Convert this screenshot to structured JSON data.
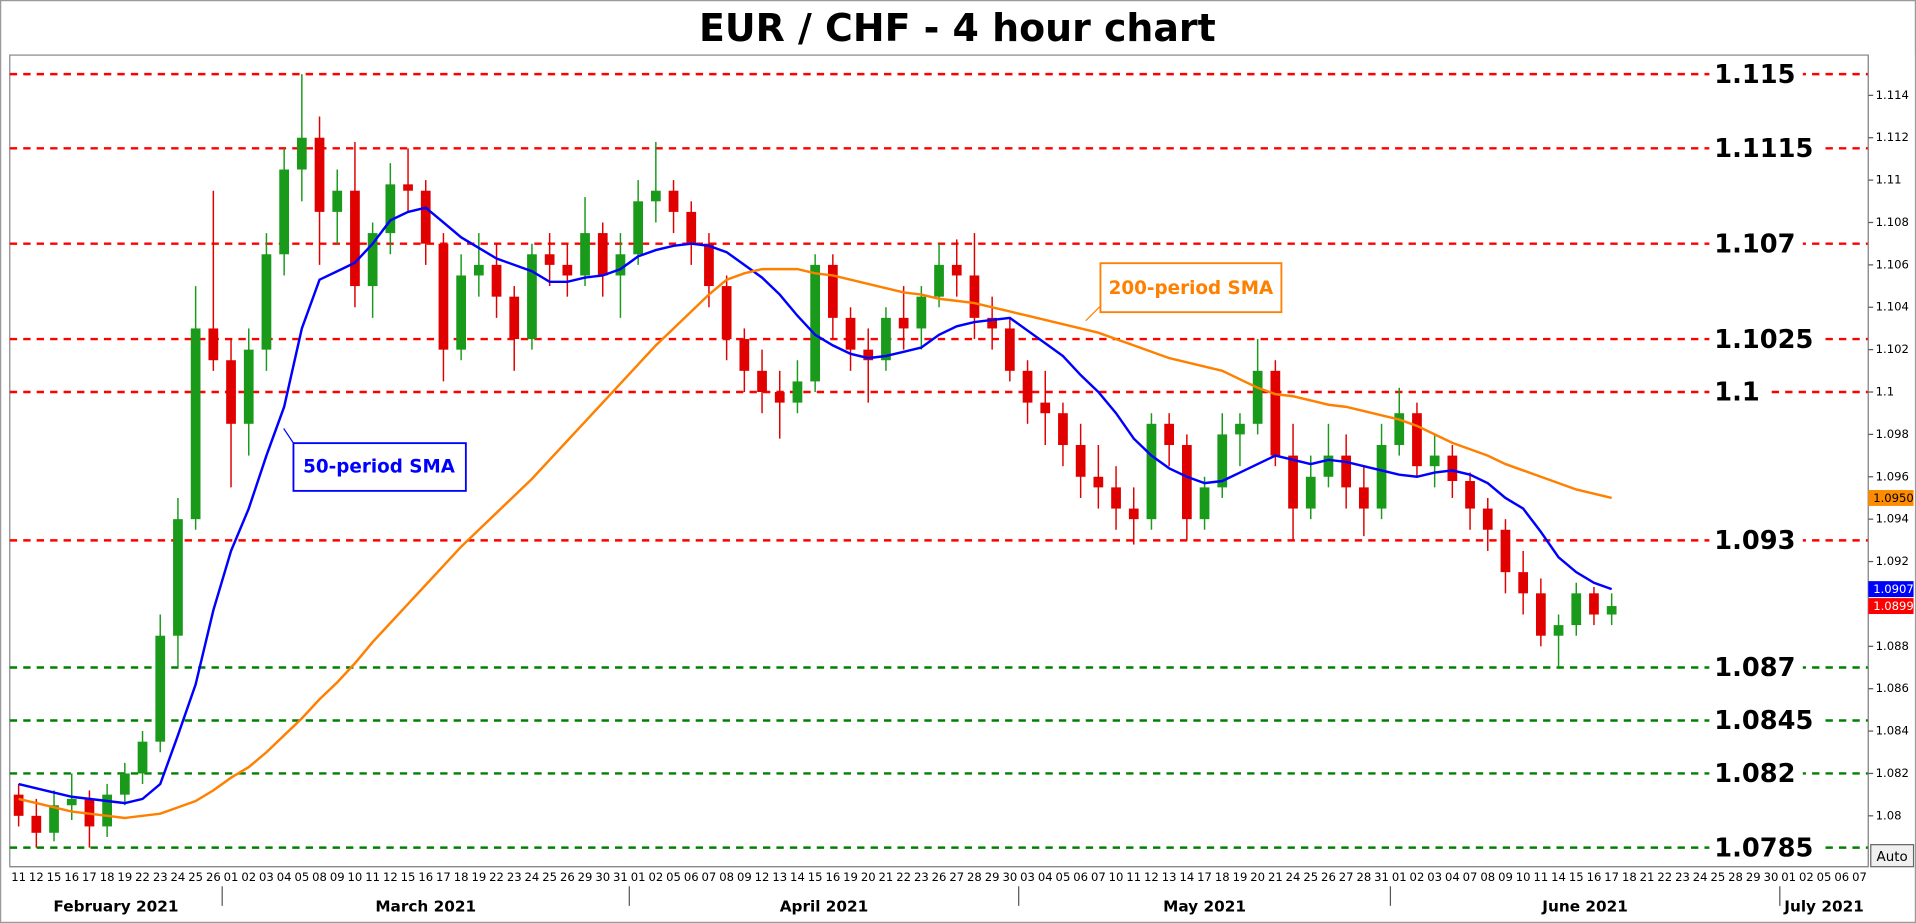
{
  "chart_data": {
    "type": "candlestick",
    "title": "EUR / CHF - 4 hour chart",
    "categories": [
      "11",
      "12",
      "15",
      "16",
      "17",
      "18",
      "19",
      "22",
      "23",
      "24",
      "25",
      "26",
      "01",
      "02",
      "03",
      "04",
      "05",
      "08",
      "09",
      "10",
      "11",
      "12",
      "15",
      "16",
      "17",
      "18",
      "19",
      "22",
      "23",
      "24",
      "25",
      "26",
      "29",
      "30",
      "31",
      "01",
      "02",
      "05",
      "06",
      "07",
      "08",
      "09",
      "12",
      "13",
      "14",
      "15",
      "16",
      "19",
      "20",
      "21",
      "22",
      "23",
      "26",
      "27",
      "28",
      "29",
      "30",
      "03",
      "04",
      "05",
      "06",
      "07",
      "10",
      "11",
      "12",
      "13",
      "14",
      "17",
      "18",
      "19",
      "20",
      "21",
      "24",
      "25",
      "26",
      "27",
      "28",
      "31",
      "01",
      "02",
      "03",
      "04",
      "07",
      "08",
      "09",
      "10",
      "11",
      "14",
      "15",
      "16",
      "17",
      "18",
      "21",
      "22",
      "23",
      "24",
      "25",
      "28",
      "29",
      "30",
      "01",
      "02",
      "05",
      "06",
      "07"
    ],
    "months": [
      "February 2021",
      "March 2021",
      "April 2021",
      "May 2021",
      "June 2021",
      "July 2021"
    ],
    "ohlc": {
      "up_color": "#1a9a1a",
      "down_color": "#e00000",
      "open": [
        1.081,
        1.08,
        1.0792,
        1.0805,
        1.0808,
        1.0795,
        1.081,
        1.082,
        1.0835,
        1.0885,
        1.094,
        1.103,
        1.1015,
        1.0985,
        1.102,
        1.1065,
        1.1105,
        1.112,
        1.1085,
        1.1095,
        1.105,
        1.1075,
        1.1098,
        1.1095,
        1.107,
        1.102,
        1.1055,
        1.106,
        1.1045,
        1.1025,
        1.1065,
        1.106,
        1.1055,
        1.1075,
        1.1055,
        1.1065,
        1.109,
        1.1095,
        1.1085,
        1.107,
        1.105,
        1.1025,
        1.101,
        1.1,
        1.0995,
        1.1005,
        1.106,
        1.1035,
        1.102,
        1.1015,
        1.1035,
        1.103,
        1.1045,
        1.106,
        1.1055,
        1.1035,
        1.103,
        1.101,
        1.0995,
        1.099,
        1.0975,
        1.096,
        1.0955,
        1.0945,
        1.094,
        1.0985,
        1.0975,
        1.094,
        1.0955,
        1.098,
        1.0985,
        1.101,
        1.097,
        1.0945,
        1.096,
        1.097,
        1.0955,
        1.0945,
        1.0975,
        1.099,
        1.0965,
        1.097,
        1.0958,
        1.0945,
        1.0935,
        1.0915,
        1.0905,
        1.0885,
        1.089,
        1.0905,
        1.0895,
        null,
        null,
        null,
        null,
        null,
        null,
        null,
        null,
        null,
        null,
        null,
        null,
        null,
        null
      ],
      "high": [
        1.0815,
        1.0808,
        1.0812,
        1.082,
        1.0812,
        1.0815,
        1.0825,
        1.084,
        1.0895,
        1.095,
        1.105,
        1.1095,
        1.1025,
        1.103,
        1.1075,
        1.1115,
        1.115,
        1.113,
        1.1105,
        1.1118,
        1.108,
        1.1108,
        1.1115,
        1.11,
        1.1075,
        1.1065,
        1.1075,
        1.107,
        1.105,
        1.107,
        1.1075,
        1.107,
        1.1092,
        1.108,
        1.1075,
        1.11,
        1.1118,
        1.11,
        1.109,
        1.1075,
        1.1055,
        1.103,
        1.102,
        1.101,
        1.1015,
        1.1065,
        1.1065,
        1.104,
        1.103,
        1.104,
        1.105,
        1.105,
        1.107,
        1.1072,
        1.1075,
        1.1045,
        1.1035,
        1.1015,
        1.101,
        1.0995,
        1.0985,
        1.0975,
        1.0965,
        1.0955,
        1.099,
        1.099,
        1.098,
        1.096,
        1.099,
        1.099,
        1.1025,
        1.1015,
        1.0985,
        1.097,
        1.0985,
        1.098,
        1.0965,
        1.0985,
        1.1002,
        1.0995,
        1.098,
        1.0975,
        1.0962,
        1.095,
        1.094,
        1.0925,
        1.0912,
        1.0895,
        1.091,
        1.0908,
        1.0905,
        null,
        null,
        null,
        null,
        null,
        null,
        null,
        null,
        null,
        null,
        null,
        null,
        null,
        null
      ],
      "low": [
        1.0795,
        1.0785,
        1.0788,
        1.0798,
        1.0785,
        1.079,
        1.0805,
        1.0815,
        1.083,
        1.087,
        1.0935,
        1.101,
        1.0955,
        1.097,
        1.101,
        1.1055,
        1.109,
        1.106,
        1.107,
        1.104,
        1.1035,
        1.1065,
        1.1085,
        1.106,
        1.1005,
        1.1015,
        1.1045,
        1.1035,
        1.101,
        1.102,
        1.105,
        1.1045,
        1.105,
        1.1045,
        1.1035,
        1.106,
        1.108,
        1.1075,
        1.106,
        1.104,
        1.1015,
        1.1,
        1.099,
        1.0978,
        1.099,
        1.1,
        1.1025,
        1.101,
        1.0995,
        1.101,
        1.102,
        1.102,
        1.104,
        1.1045,
        1.1025,
        1.102,
        1.1005,
        1.0985,
        1.0975,
        1.0965,
        1.095,
        1.0945,
        1.0935,
        1.0928,
        1.0935,
        1.0965,
        1.093,
        1.0935,
        1.095,
        1.0965,
        1.098,
        1.0965,
        1.093,
        1.094,
        1.0955,
        1.0945,
        1.0932,
        1.094,
        1.097,
        1.096,
        1.0955,
        1.095,
        1.0935,
        1.0925,
        1.0905,
        1.0895,
        1.088,
        1.087,
        1.0885,
        1.089,
        1.089,
        null,
        null,
        null,
        null,
        null,
        null,
        null,
        null,
        null,
        null,
        null,
        null,
        null,
        null
      ],
      "close": [
        1.08,
        1.0792,
        1.0805,
        1.0808,
        1.0795,
        1.081,
        1.082,
        1.0835,
        1.0885,
        1.094,
        1.103,
        1.1015,
        1.0985,
        1.102,
        1.1065,
        1.1105,
        1.112,
        1.1085,
        1.1095,
        1.105,
        1.1075,
        1.1098,
        1.1095,
        1.107,
        1.102,
        1.1055,
        1.106,
        1.1045,
        1.1025,
        1.1065,
        1.106,
        1.1055,
        1.1075,
        1.1055,
        1.1065,
        1.109,
        1.1095,
        1.1085,
        1.107,
        1.105,
        1.1025,
        1.101,
        1.1,
        1.0995,
        1.1005,
        1.106,
        1.1035,
        1.102,
        1.1015,
        1.1035,
        1.103,
        1.1045,
        1.106,
        1.1055,
        1.1035,
        1.103,
        1.101,
        1.0995,
        1.099,
        1.0975,
        1.096,
        1.0955,
        1.0945,
        1.094,
        1.0985,
        1.0975,
        1.094,
        1.0955,
        1.098,
        1.0985,
        1.101,
        1.097,
        1.0945,
        1.096,
        1.097,
        1.0955,
        1.0945,
        1.0975,
        1.099,
        1.0965,
        1.097,
        1.0958,
        1.0945,
        1.0935,
        1.0915,
        1.0905,
        1.0885,
        1.089,
        1.0905,
        1.0895,
        1.0899,
        null,
        null,
        null,
        null,
        null,
        null,
        null,
        null,
        null,
        null,
        null,
        null,
        null,
        null
      ]
    },
    "series": [
      {
        "name": "50-period SMA",
        "color": "#0000ff",
        "values": [
          1.0815,
          1.0813,
          1.0811,
          1.0809,
          1.0808,
          1.0807,
          1.0806,
          1.0808,
          1.0815,
          1.0838,
          1.0862,
          1.0897,
          1.0925,
          1.0945,
          1.097,
          1.0993,
          1.103,
          1.1053,
          1.1057,
          1.1061,
          1.107,
          1.1081,
          1.1085,
          1.1087,
          1.108,
          1.1073,
          1.1068,
          1.1063,
          1.106,
          1.1057,
          1.1052,
          1.1052,
          1.1054,
          1.1055,
          1.1058,
          1.1064,
          1.1067,
          1.1069,
          1.107,
          1.1069,
          1.1066,
          1.106,
          1.1054,
          1.1046,
          1.1036,
          1.1027,
          1.1022,
          1.1018,
          1.1016,
          1.1017,
          1.1019,
          1.1021,
          1.1027,
          1.1031,
          1.1033,
          1.1034,
          1.1035,
          1.1029,
          1.1023,
          1.1017,
          1.1008,
          1.1,
          1.099,
          1.0978,
          1.097,
          1.0964,
          1.096,
          1.0957,
          1.0958,
          1.0962,
          1.0966,
          1.097,
          1.0968,
          1.0966,
          1.0968,
          1.0967,
          1.0965,
          1.0963,
          1.0961,
          1.096,
          1.0962,
          1.0963,
          1.0961,
          1.0957,
          1.095,
          1.0945,
          1.0934,
          1.0922,
          1.0915,
          1.091,
          1.0907,
          null,
          null,
          null,
          null,
          null,
          null,
          null,
          null,
          null,
          null,
          null,
          null,
          null,
          null
        ]
      },
      {
        "name": "200-period SMA",
        "color": "#ff8000",
        "values": [
          1.0808,
          1.0806,
          1.0804,
          1.0802,
          1.0801,
          1.08,
          1.0799,
          1.08,
          1.0801,
          1.0804,
          1.0807,
          1.0812,
          1.0818,
          1.0823,
          1.083,
          1.0838,
          1.0846,
          1.0855,
          1.0863,
          1.0872,
          1.0882,
          1.0891,
          1.09,
          1.0909,
          1.0918,
          1.0927,
          1.0935,
          1.0943,
          1.0951,
          1.0959,
          1.0968,
          1.0977,
          1.0986,
          1.0995,
          1.1004,
          1.1013,
          1.1022,
          1.103,
          1.1038,
          1.1046,
          1.1053,
          1.1056,
          1.1058,
          1.1058,
          1.1058,
          1.1056,
          1.1055,
          1.1053,
          1.1051,
          1.1049,
          1.1047,
          1.1046,
          1.1044,
          1.1043,
          1.1042,
          1.104,
          1.1038,
          1.1036,
          1.1034,
          1.1032,
          1.103,
          1.1028,
          1.1025,
          1.1022,
          1.1019,
          1.1016,
          1.1014,
          1.1012,
          1.101,
          1.1006,
          1.1002,
          1.0999,
          1.0998,
          1.0996,
          1.0994,
          1.0993,
          1.0991,
          1.0989,
          1.0987,
          1.0984,
          1.098,
          1.0976,
          1.0973,
          1.097,
          1.0966,
          1.0963,
          1.096,
          1.0957,
          1.0954,
          1.0952,
          1.095,
          null,
          null,
          null,
          null,
          null,
          null,
          null,
          null,
          null,
          null,
          null,
          null,
          null,
          null
        ]
      }
    ],
    "levels": [
      {
        "value": 1.115,
        "color": "#ff0000"
      },
      {
        "value": 1.1115,
        "color": "#ff0000"
      },
      {
        "value": 1.107,
        "color": "#ff0000"
      },
      {
        "value": 1.1025,
        "color": "#ff0000"
      },
      {
        "value": 1.1,
        "color": "#ff0000"
      },
      {
        "value": 1.093,
        "color": "#ff0000"
      },
      {
        "value": 1.087,
        "color": "#008000"
      },
      {
        "value": 1.0845,
        "color": "#008000"
      },
      {
        "value": 1.082,
        "color": "#008000"
      },
      {
        "value": 1.0785,
        "color": "#008000"
      }
    ],
    "price_tags": [
      {
        "value": 1.095,
        "label": "1.0950",
        "color": "#ff8c00"
      },
      {
        "value": 1.0907,
        "label": "1.0907",
        "color": "#0000ff"
      },
      {
        "value": 1.0899,
        "label": "1.0899",
        "color": "#ff0000"
      }
    ],
    "ylim": [
      1.0776,
      1.1159
    ],
    "yticks": [
      1.08,
      1.082,
      1.084,
      1.086,
      1.088,
      1.092,
      1.094,
      1.096,
      1.098,
      1.1,
      1.102,
      1.104,
      1.106,
      1.108,
      1.11,
      1.112,
      1.114
    ]
  },
  "ui": {
    "button": "Auto"
  }
}
